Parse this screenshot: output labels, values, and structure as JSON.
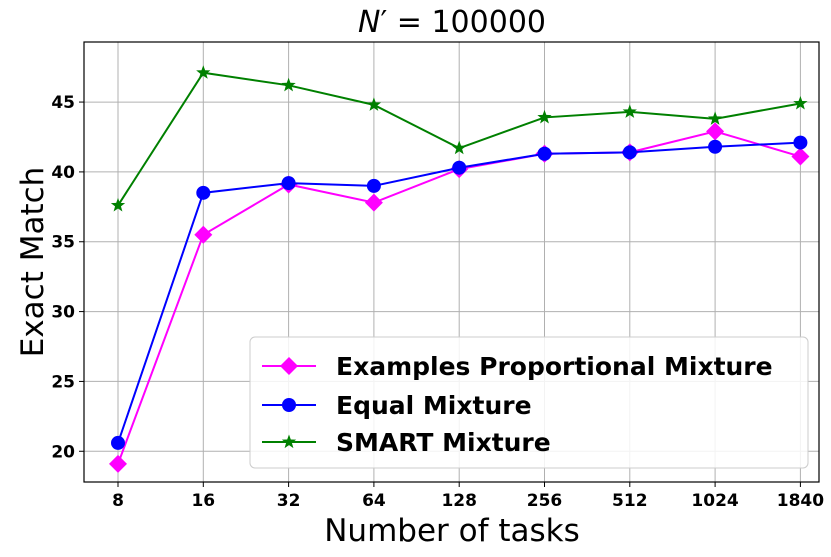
{
  "chart_data": {
    "type": "line",
    "title": "N′ = 100000",
    "title_parts": {
      "symbol": "N",
      "prime": "′",
      "rest": " = 100000"
    },
    "xlabel": "Number of tasks",
    "ylabel": "Exact Match",
    "categories": [
      "8",
      "16",
      "32",
      "64",
      "128",
      "256",
      "512",
      "1024",
      "1840"
    ],
    "yticks": [
      20,
      25,
      30,
      35,
      40,
      45
    ],
    "ylim": [
      17.8,
      49.3
    ],
    "grid": true,
    "legend_position": "bottom-right",
    "series": [
      {
        "name": "Examples Proportional Mixture",
        "color": "#ff00ff",
        "marker": "diamond",
        "values": [
          19.1,
          35.5,
          39.1,
          37.8,
          40.2,
          41.3,
          41.4,
          42.9,
          41.1
        ]
      },
      {
        "name": "Equal Mixture",
        "color": "#0000ff",
        "marker": "circle",
        "values": [
          20.6,
          38.5,
          39.2,
          39.0,
          40.3,
          41.3,
          41.4,
          41.8,
          42.1
        ]
      },
      {
        "name": "SMART Mixture",
        "color": "#008000",
        "marker": "star",
        "values": [
          37.6,
          47.1,
          46.2,
          44.8,
          41.7,
          43.9,
          44.3,
          43.8,
          44.9
        ]
      }
    ]
  }
}
